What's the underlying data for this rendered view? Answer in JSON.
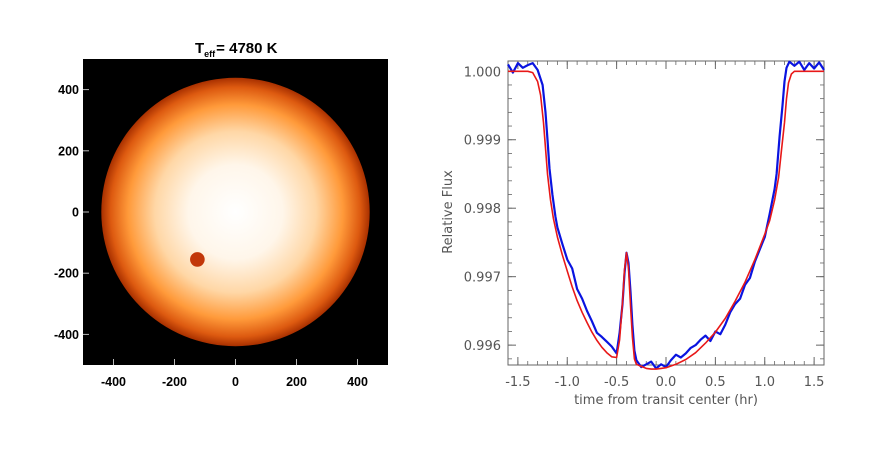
{
  "chart_data": [
    {
      "type": "heatmap",
      "title": "T",
      "title_subscript": "eff",
      "title_value": "= 4780 K",
      "xlim": [
        -500,
        500
      ],
      "ylim": [
        -500,
        500
      ],
      "x_ticks": [
        "-400",
        "-200",
        "0",
        "200",
        "400"
      ],
      "y_ticks": [
        "400",
        "200",
        "0",
        "-200",
        "-400"
      ],
      "x_tick_values": [
        -400,
        -200,
        0,
        200,
        400
      ],
      "y_tick_values": [
        400,
        200,
        0,
        -200,
        -400
      ],
      "star": {
        "center": [
          0,
          0
        ],
        "radius": 440
      },
      "spot": {
        "center": [
          -125,
          -155
        ],
        "radius": 24
      },
      "colors": {
        "background": "#000000",
        "limb": "#a83000",
        "mid": "#ff9a3a",
        "core": "#ffffff",
        "spot": "#c2370a"
      }
    },
    {
      "type": "line",
      "xlabel": "time from transit center (hr)",
      "ylabel": "Relative Flux",
      "xlim": [
        -1.6,
        1.6
      ],
      "ylim": [
        0.99571,
        1.00015
      ],
      "x_ticks": [
        "-1.5",
        "-1.0",
        "-0.5",
        "0.0",
        "0.5",
        "1.0",
        "1.5"
      ],
      "x_tick_values": [
        -1.5,
        -1.0,
        -0.5,
        0.0,
        0.5,
        1.0,
        1.5
      ],
      "y_ticks": [
        "0.996",
        "0.997",
        "0.998",
        "0.999",
        "1.000"
      ],
      "y_tick_values": [
        0.996,
        0.997,
        0.998,
        0.999,
        1.0
      ],
      "series": [
        {
          "color": "#0a14e0",
          "x": [
            -1.6,
            -1.55,
            -1.5,
            -1.45,
            -1.4,
            -1.35,
            -1.3,
            -1.25,
            -1.22,
            -1.2,
            -1.18,
            -1.15,
            -1.12,
            -1.1,
            -1.05,
            -1.0,
            -0.95,
            -0.9,
            -0.85,
            -0.8,
            -0.75,
            -0.7,
            -0.65,
            -0.6,
            -0.55,
            -0.5,
            -0.47,
            -0.44,
            -0.42,
            -0.4,
            -0.38,
            -0.36,
            -0.34,
            -0.32,
            -0.3,
            -0.25,
            -0.2,
            -0.15,
            -0.1,
            -0.05,
            0.0,
            0.05,
            0.1,
            0.15,
            0.2,
            0.25,
            0.3,
            0.35,
            0.4,
            0.45,
            0.5,
            0.55,
            0.6,
            0.65,
            0.7,
            0.75,
            0.8,
            0.85,
            0.9,
            0.95,
            1.0,
            1.05,
            1.1,
            1.12,
            1.15,
            1.18,
            1.2,
            1.22,
            1.25,
            1.3,
            1.35,
            1.4,
            1.45,
            1.5,
            1.55,
            1.6
          ],
          "y": [
            1.0001,
            0.99998,
            1.00012,
            1.00005,
            1.00009,
            1.00012,
            1.00002,
            0.9998,
            0.9994,
            0.999,
            0.99858,
            0.9982,
            0.99788,
            0.99772,
            0.99748,
            0.99725,
            0.99712,
            0.99682,
            0.99668,
            0.9965,
            0.99635,
            0.99618,
            0.99612,
            0.99605,
            0.99598,
            0.99588,
            0.99618,
            0.9966,
            0.99705,
            0.99735,
            0.9972,
            0.99678,
            0.9963,
            0.99592,
            0.99578,
            0.99568,
            0.99572,
            0.99576,
            0.99566,
            0.99572,
            0.99568,
            0.99578,
            0.99586,
            0.99582,
            0.99588,
            0.99596,
            0.996,
            0.99608,
            0.99614,
            0.99606,
            0.9962,
            0.99616,
            0.9963,
            0.99648,
            0.9966,
            0.99668,
            0.99688,
            0.99698,
            0.99722,
            0.9974,
            0.99758,
            0.99792,
            0.99828,
            0.9985,
            0.99905,
            0.9995,
            0.99985,
            1.00005,
            1.00014,
            1.00008,
            1.00014,
            1.00002,
            1.00012,
            1.00004,
            1.00013,
            1.00002
          ]
        },
        {
          "color": "#e81818",
          "x": [
            -1.6,
            -1.55,
            -1.5,
            -1.45,
            -1.4,
            -1.35,
            -1.3,
            -1.27,
            -1.24,
            -1.22,
            -1.2,
            -1.17,
            -1.14,
            -1.1,
            -1.05,
            -1.0,
            -0.95,
            -0.9,
            -0.85,
            -0.8,
            -0.75,
            -0.7,
            -0.65,
            -0.6,
            -0.55,
            -0.5,
            -0.47,
            -0.44,
            -0.42,
            -0.4,
            -0.38,
            -0.36,
            -0.34,
            -0.32,
            -0.3,
            -0.25,
            -0.2,
            -0.15,
            -0.1,
            -0.05,
            0.0,
            0.1,
            0.2,
            0.3,
            0.4,
            0.5,
            0.6,
            0.7,
            0.8,
            0.9,
            1.0,
            1.05,
            1.1,
            1.14,
            1.17,
            1.2,
            1.22,
            1.24,
            1.27,
            1.3,
            1.35,
            1.4,
            1.45,
            1.5,
            1.55,
            1.6
          ],
          "y": [
            1.0,
            1.0,
            1.0,
            1.0,
            1.0,
            0.99998,
            0.99985,
            0.99965,
            0.99925,
            0.99888,
            0.9985,
            0.99812,
            0.99785,
            0.99758,
            0.99732,
            0.99708,
            0.99685,
            0.99665,
            0.99648,
            0.99633,
            0.99619,
            0.99607,
            0.99597,
            0.99589,
            0.99583,
            0.99582,
            0.99608,
            0.99662,
            0.9971,
            0.99735,
            0.99712,
            0.99658,
            0.99612,
            0.9958,
            0.99572,
            0.99569,
            0.99566,
            0.99565,
            0.99565,
            0.99566,
            0.99567,
            0.99572,
            0.99579,
            0.99589,
            0.99603,
            0.99619,
            0.99639,
            0.99664,
            0.99692,
            0.99725,
            0.99762,
            0.99782,
            0.99812,
            0.99845,
            0.99885,
            0.99925,
            0.9996,
            0.99983,
            0.99996,
            1.0,
            1.0,
            1.0,
            1.0,
            1.0,
            1.0,
            1.0
          ]
        }
      ]
    }
  ]
}
